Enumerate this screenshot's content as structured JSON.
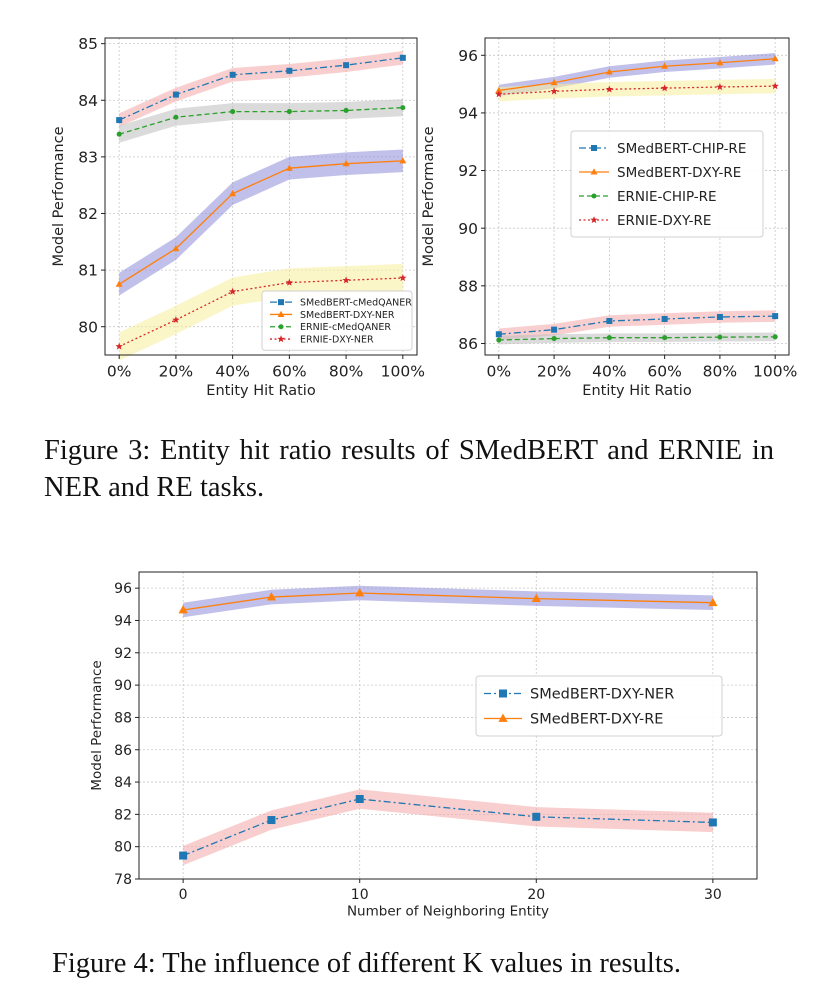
{
  "fig3": {
    "caption": "Figure 3: Entity hit ratio results of SMedBERT and ERNIE in NER and RE tasks."
  },
  "fig4": {
    "caption": "Figure 4: The influence of different K values in results."
  },
  "colors": {
    "blue": "#1f77b4",
    "orange": "#ff7f0e",
    "green": "#2ca02c",
    "red": "#d62728",
    "band_blue": "#8c8cd9",
    "band_red": "#f4a6a6",
    "band_gray": "#bdbdbd",
    "band_yellow": "#f7ee9a"
  },
  "chart_data": [
    {
      "id": "fig3-left",
      "type": "line",
      "title": "",
      "xlabel": "Entity Hit Ratio",
      "ylabel": "Model Performance",
      "categories": [
        "0%",
        "20%",
        "40%",
        "60%",
        "80%",
        "100%"
      ],
      "ylim": [
        79.5,
        85.1
      ],
      "yticks": [
        80,
        81,
        82,
        83,
        84,
        85
      ],
      "grid": true,
      "legend": "bottom-right",
      "series": [
        {
          "name": "SMedBERT-cMedQANER",
          "color": "blue",
          "marker": "square",
          "dash": "dashdot",
          "band": "band_red",
          "band_width": 0.12,
          "values": [
            83.65,
            84.1,
            84.45,
            84.52,
            84.62,
            84.75
          ]
        },
        {
          "name": "SMedBERT-DXY-NER",
          "color": "orange",
          "marker": "triangle",
          "dash": "solid",
          "band": "band_blue",
          "band_width": 0.2,
          "values": [
            80.75,
            81.38,
            82.35,
            82.8,
            82.88,
            82.93
          ]
        },
        {
          "name": "ERNIE-cMedQANER",
          "color": "green",
          "marker": "circle",
          "dash": "dashed",
          "band": "band_gray",
          "band_width": 0.15,
          "values": [
            83.4,
            83.7,
            83.8,
            83.8,
            83.82,
            83.87
          ]
        },
        {
          "name": "ERNIE-DXY-NER",
          "color": "red",
          "marker": "star",
          "dash": "dotted",
          "band": "band_yellow",
          "band_width": 0.25,
          "values": [
            79.65,
            80.12,
            80.62,
            80.78,
            80.82,
            80.86
          ]
        }
      ]
    },
    {
      "id": "fig3-right",
      "type": "line",
      "title": "",
      "xlabel": "Entity Hit Ratio",
      "ylabel": "Model Performance",
      "categories": [
        "0%",
        "20%",
        "40%",
        "60%",
        "80%",
        "100%"
      ],
      "ylim": [
        85.6,
        96.6
      ],
      "yticks": [
        86,
        88,
        90,
        92,
        94,
        96
      ],
      "grid": true,
      "legend": "center-right",
      "series": [
        {
          "name": "SMedBERT-CHIP-RE",
          "color": "blue",
          "marker": "square",
          "dash": "dashdot",
          "band": "band_red",
          "band_width": 0.2,
          "values": [
            86.32,
            86.48,
            86.78,
            86.85,
            86.92,
            86.95
          ]
        },
        {
          "name": "SMedBERT-DXY-RE",
          "color": "orange",
          "marker": "triangle",
          "dash": "solid",
          "band": "band_blue",
          "band_width": 0.2,
          "values": [
            94.78,
            95.05,
            95.42,
            95.62,
            95.74,
            95.88
          ]
        },
        {
          "name": "ERNIE-CHIP-RE",
          "color": "green",
          "marker": "circle",
          "dash": "dashed",
          "band": "band_gray",
          "band_width": 0.15,
          "values": [
            86.12,
            86.17,
            86.2,
            86.2,
            86.22,
            86.23
          ]
        },
        {
          "name": "ERNIE-DXY-RE",
          "color": "red",
          "marker": "star",
          "dash": "dotted",
          "band": "band_yellow",
          "band_width": 0.25,
          "values": [
            94.65,
            94.75,
            94.82,
            94.86,
            94.9,
            94.93
          ]
        }
      ]
    },
    {
      "id": "fig4",
      "type": "line",
      "title": "",
      "xlabel": "Number of Neighboring Entity",
      "ylabel": "Model Performance",
      "x": [
        0,
        5,
        10,
        20,
        30
      ],
      "xticks": [
        0,
        10,
        20,
        30
      ],
      "xlim": [
        -2.5,
        32.5
      ],
      "ylim": [
        78,
        97
      ],
      "yticks": [
        78,
        80,
        82,
        84,
        86,
        88,
        90,
        92,
        94,
        96
      ],
      "grid": true,
      "legend": "center-right",
      "series": [
        {
          "name": "SMedBERT-DXY-NER",
          "color": "blue",
          "marker": "square",
          "dash": "dashdot",
          "band": "band_red",
          "band_width": 0.6,
          "values": [
            79.45,
            81.65,
            82.95,
            81.85,
            81.5
          ]
        },
        {
          "name": "SMedBERT-DXY-RE",
          "color": "orange",
          "marker": "triangle",
          "dash": "solid",
          "band": "band_blue",
          "band_width": 0.45,
          "values": [
            94.65,
            95.45,
            95.7,
            95.35,
            95.1
          ]
        }
      ]
    }
  ]
}
